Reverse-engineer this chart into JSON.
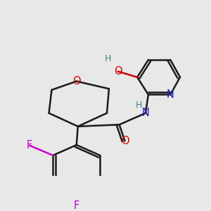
{
  "bg_color": "#e8e8e8",
  "bond_color": "#1a1a1a",
  "bond_width": 1.8,
  "figsize": [
    3.0,
    3.0
  ],
  "dpi": 100,
  "colors": {
    "O": "#cc0000",
    "N": "#1a1acc",
    "F": "#cc00cc",
    "C": "#1a1a1a",
    "H_label": "#3a8080"
  }
}
